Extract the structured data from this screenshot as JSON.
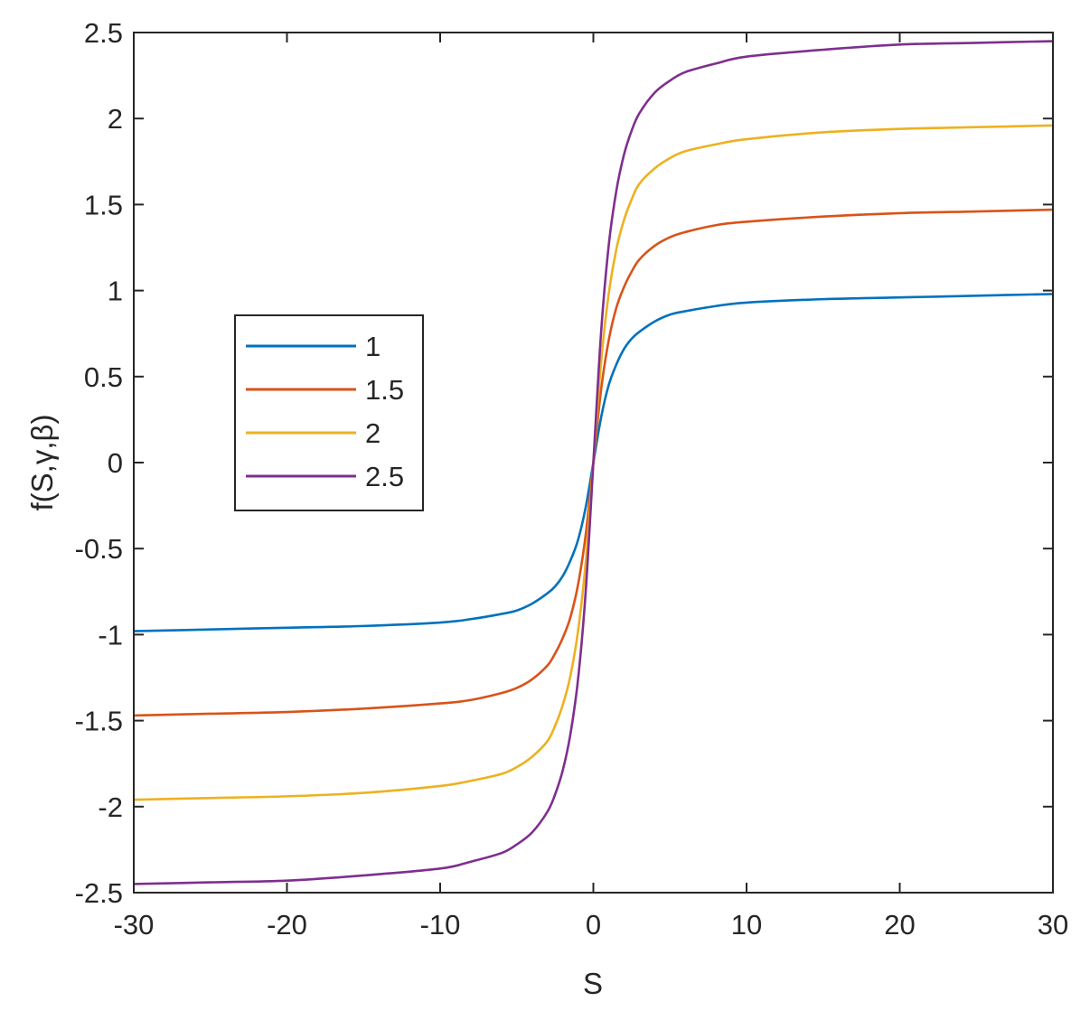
{
  "chart_data": {
    "type": "line",
    "title": "",
    "xlabel": "S",
    "ylabel": "f(S,γ,β)",
    "xlim": [
      -30,
      30
    ],
    "ylim": [
      -2.5,
      2.5
    ],
    "xticks": [
      -30,
      -20,
      -10,
      0,
      10,
      20,
      30
    ],
    "yticks": [
      -2.5,
      -2,
      -1.5,
      -1,
      -0.5,
      0,
      0.5,
      1,
      1.5,
      2,
      2.5
    ],
    "xtick_labels": [
      "-30",
      "-20",
      "-10",
      "0",
      "10",
      "20",
      "30"
    ],
    "ytick_labels": [
      "-2.5",
      "-2",
      "-1.5",
      "-1",
      "-0.5",
      "0",
      "0.5",
      "1",
      "1.5",
      "2",
      "2.5"
    ],
    "grid": false,
    "legend_position": "left-middle",
    "x": [
      -30,
      -25,
      -20,
      -15,
      -10,
      -8,
      -6,
      -5,
      -4,
      -3,
      -2.5,
      -2,
      -1.5,
      -1,
      -0.5,
      0,
      0.5,
      1,
      1.5,
      2,
      2.5,
      3,
      4,
      5,
      6,
      8,
      10,
      15,
      20,
      25,
      30
    ],
    "series": [
      {
        "name": "1",
        "color": "#0072BD",
        "values": [
          -0.98,
          -0.97,
          -0.96,
          -0.95,
          -0.93,
          -0.91,
          -0.88,
          -0.86,
          -0.82,
          -0.76,
          -0.72,
          -0.66,
          -0.57,
          -0.45,
          -0.26,
          0,
          0.26,
          0.45,
          0.57,
          0.66,
          0.72,
          0.76,
          0.82,
          0.86,
          0.88,
          0.91,
          0.93,
          0.95,
          0.96,
          0.97,
          0.98
        ]
      },
      {
        "name": "1.5",
        "color": "#D95319",
        "values": [
          -1.47,
          -1.46,
          -1.45,
          -1.43,
          -1.4,
          -1.38,
          -1.34,
          -1.31,
          -1.26,
          -1.18,
          -1.11,
          -1.02,
          -0.9,
          -0.71,
          -0.42,
          0,
          0.42,
          0.71,
          0.9,
          1.02,
          1.11,
          1.18,
          1.26,
          1.31,
          1.34,
          1.38,
          1.4,
          1.43,
          1.45,
          1.46,
          1.47
        ]
      },
      {
        "name": "2",
        "color": "#EDB120",
        "values": [
          -1.96,
          -1.95,
          -1.94,
          -1.92,
          -1.88,
          -1.85,
          -1.81,
          -1.77,
          -1.71,
          -1.62,
          -1.53,
          -1.41,
          -1.24,
          -0.98,
          -0.58,
          0,
          0.58,
          0.98,
          1.24,
          1.41,
          1.53,
          1.62,
          1.71,
          1.77,
          1.81,
          1.85,
          1.88,
          1.92,
          1.94,
          1.95,
          1.96
        ]
      },
      {
        "name": "2.5",
        "color": "#7E2F8E",
        "values": [
          -2.45,
          -2.44,
          -2.43,
          -2.4,
          -2.36,
          -2.32,
          -2.27,
          -2.22,
          -2.15,
          -2.03,
          -1.93,
          -1.79,
          -1.58,
          -1.26,
          -0.75,
          0,
          0.75,
          1.26,
          1.58,
          1.79,
          1.93,
          2.03,
          2.15,
          2.22,
          2.27,
          2.32,
          2.36,
          2.4,
          2.43,
          2.44,
          2.45
        ]
      }
    ]
  }
}
